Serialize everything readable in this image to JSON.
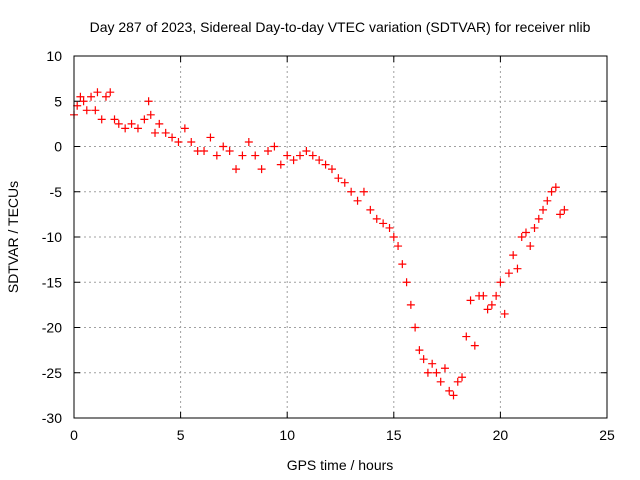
{
  "chart_data": {
    "type": "scatter",
    "title": "Day 287 of 2023, Sidereal Day-to-day VTEC variation (SDTVAR) for receiver nlib",
    "xlabel": "GPS time / hours",
    "ylabel": "SDTVAR / TECUs",
    "xlim": [
      0,
      25
    ],
    "ylim": [
      -30,
      10
    ],
    "xticks": [
      0,
      5,
      10,
      15,
      20,
      25
    ],
    "yticks": [
      -30,
      -25,
      -20,
      -15,
      -10,
      -5,
      0,
      5,
      10
    ],
    "grid": true,
    "marker": "+",
    "color": "#ff0000",
    "series": [
      {
        "name": "SDTVAR",
        "x": [
          0.0,
          0.15,
          0.3,
          0.45,
          0.6,
          0.8,
          1.0,
          1.1,
          1.3,
          1.5,
          1.7,
          1.9,
          2.1,
          2.4,
          2.7,
          3.0,
          3.3,
          3.5,
          3.6,
          3.8,
          4.0,
          4.3,
          4.6,
          4.9,
          5.2,
          5.5,
          5.8,
          6.1,
          6.4,
          6.7,
          7.0,
          7.3,
          7.6,
          7.9,
          8.2,
          8.5,
          8.8,
          9.1,
          9.4,
          9.7,
          10.0,
          10.3,
          10.6,
          10.9,
          11.2,
          11.5,
          11.8,
          12.1,
          12.4,
          12.7,
          13.0,
          13.3,
          13.6,
          13.9,
          14.2,
          14.5,
          14.8,
          15.0,
          15.2,
          15.4,
          15.6,
          15.8,
          16.0,
          16.2,
          16.4,
          16.6,
          16.8,
          17.0,
          17.2,
          17.4,
          17.6,
          17.8,
          18.0,
          18.2,
          18.4,
          18.6,
          18.8,
          19.0,
          19.2,
          19.4,
          19.6,
          19.8,
          20.0,
          20.2,
          20.4,
          20.6,
          20.8,
          21.0,
          21.2,
          21.4,
          21.6,
          21.8,
          22.0,
          22.2,
          22.4,
          22.6,
          22.8,
          23.0
        ],
        "y": [
          3.5,
          4.5,
          5.5,
          5.0,
          4.0,
          5.5,
          4.0,
          6.0,
          3.0,
          5.5,
          6.0,
          3.0,
          2.5,
          2.0,
          2.5,
          2.0,
          3.0,
          5.0,
          3.5,
          1.5,
          2.5,
          1.5,
          1.0,
          0.5,
          2.0,
          0.5,
          -0.5,
          -0.5,
          1.0,
          -1.0,
          0.0,
          -0.5,
          -2.5,
          -1.0,
          0.5,
          -1.0,
          -2.5,
          -0.5,
          0.0,
          -2.0,
          -1.0,
          -1.5,
          -1.0,
          -0.5,
          -1.0,
          -1.5,
          -2.0,
          -2.5,
          -3.5,
          -4.0,
          -5.0,
          -6.0,
          -5.0,
          -7.0,
          -8.0,
          -8.5,
          -9.0,
          -10.0,
          -11.0,
          -13.0,
          -15.0,
          -17.5,
          -20.0,
          -22.5,
          -23.5,
          -25.0,
          -24.0,
          -25.0,
          -26.0,
          -24.5,
          -27.0,
          -27.5,
          -26.0,
          -25.5,
          -21.0,
          -17.0,
          -22.0,
          -16.5,
          -16.5,
          -18.0,
          -17.5,
          -16.5,
          -15.0,
          -18.5,
          -14.0,
          -12.0,
          -13.5,
          -10.0,
          -9.5,
          -11.0,
          -9.0,
          -8.0,
          -7.0,
          -6.0,
          -5.0,
          -4.5,
          -7.5,
          -7.0
        ]
      }
    ]
  }
}
